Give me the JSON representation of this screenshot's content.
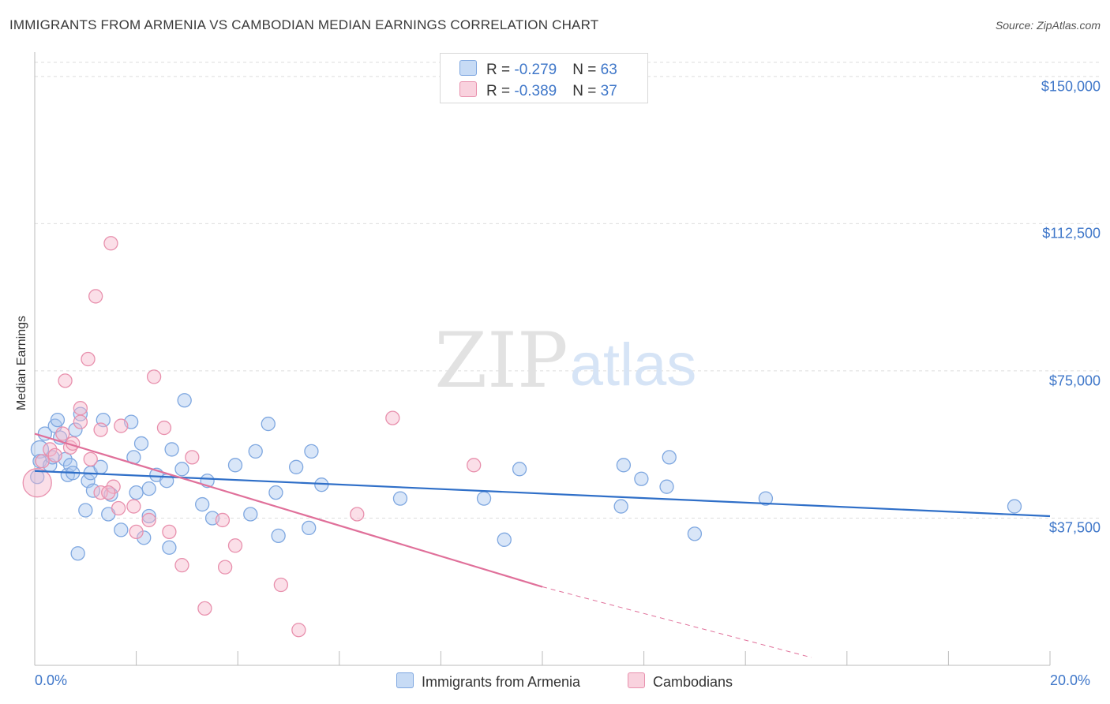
{
  "title": "IMMIGRANTS FROM ARMENIA VS CAMBODIAN MEDIAN EARNINGS CORRELATION CHART",
  "source": "Source: ZipAtlas.com",
  "watermark": {
    "zip": "ZIP",
    "atlas": "atlas"
  },
  "colors": {
    "blue_fill": "#aac8f0",
    "blue_stroke": "#7ea7e0",
    "blue_line": "#2f6fc8",
    "pink_fill": "#f6b8cb",
    "pink_stroke": "#e890ad",
    "pink_line": "#e0709a",
    "accent_text": "#3f77c9",
    "grid": "#dddddd"
  },
  "legend": {
    "rows": [
      {
        "r_label": "R = ",
        "r_value": "-0.279",
        "n_label": "N = ",
        "n_value": "63",
        "color": "blue"
      },
      {
        "r_label": "R = ",
        "r_value": "-0.389",
        "n_label": "N = ",
        "n_value": "37",
        "color": "pink"
      }
    ]
  },
  "chart_data": {
    "type": "scatter",
    "title": "IMMIGRANTS FROM ARMENIA VS CAMBODIAN MEDIAN EARNINGS CORRELATION CHART",
    "xlabel": "",
    "ylabel": "Median Earnings",
    "xlim": [
      0,
      20
    ],
    "ylim": [
      0,
      155000
    ],
    "x_tick_labels": [
      "0.0%",
      "20.0%"
    ],
    "y_ticks": [
      37500,
      75000,
      112500,
      150000
    ],
    "y_tick_labels": [
      "$37,500",
      "$75,000",
      "$112,500",
      "$150,000"
    ],
    "grid": "horizontal dashed",
    "legend_position": "bottom-center",
    "series": [
      {
        "name": "Immigrants from Armenia",
        "color": "blue",
        "trend": {
          "x": [
            0,
            20
          ],
          "y": [
            49500,
            38000
          ],
          "dashed_from": null
        },
        "points": [
          [
            0.1,
            55000
          ],
          [
            0.1,
            52000
          ],
          [
            0.2,
            59000
          ],
          [
            0.3,
            51000
          ],
          [
            0.35,
            53000
          ],
          [
            0.4,
            61000
          ],
          [
            0.45,
            62500
          ],
          [
            0.5,
            58000
          ],
          [
            0.6,
            52500
          ],
          [
            0.65,
            48500
          ],
          [
            0.7,
            51000
          ],
          [
            0.75,
            49000
          ],
          [
            0.8,
            60000
          ],
          [
            0.85,
            28500
          ],
          [
            0.9,
            64000
          ],
          [
            1.0,
            39500
          ],
          [
            1.05,
            47000
          ],
          [
            1.1,
            49000
          ],
          [
            1.15,
            44500
          ],
          [
            1.3,
            50500
          ],
          [
            1.35,
            62500
          ],
          [
            1.45,
            38500
          ],
          [
            1.5,
            43500
          ],
          [
            1.7,
            34500
          ],
          [
            1.9,
            62000
          ],
          [
            1.95,
            53000
          ],
          [
            2.0,
            44000
          ],
          [
            2.1,
            56500
          ],
          [
            2.15,
            32500
          ],
          [
            2.25,
            45000
          ],
          [
            2.4,
            48500
          ],
          [
            2.6,
            47000
          ],
          [
            2.65,
            30000
          ],
          [
            2.7,
            55000
          ],
          [
            2.9,
            50000
          ],
          [
            2.95,
            67500
          ],
          [
            3.3,
            41000
          ],
          [
            3.4,
            47000
          ],
          [
            3.5,
            37500
          ],
          [
            3.95,
            51000
          ],
          [
            4.25,
            38500
          ],
          [
            4.35,
            54500
          ],
          [
            4.6,
            61500
          ],
          [
            4.75,
            44000
          ],
          [
            4.8,
            33000
          ],
          [
            5.15,
            50500
          ],
          [
            5.4,
            35000
          ],
          [
            5.45,
            54500
          ],
          [
            5.65,
            46000
          ],
          [
            7.2,
            42500
          ],
          [
            8.85,
            42500
          ],
          [
            9.25,
            32000
          ],
          [
            9.55,
            50000
          ],
          [
            11.55,
            40500
          ],
          [
            11.6,
            51000
          ],
          [
            11.95,
            47500
          ],
          [
            12.45,
            45500
          ],
          [
            12.5,
            53000
          ],
          [
            13.0,
            33500
          ],
          [
            14.4,
            42500
          ],
          [
            19.3,
            40500
          ],
          [
            0.05,
            48000
          ],
          [
            2.25,
            38000
          ]
        ]
      },
      {
        "name": "Cambodians",
        "color": "pink",
        "trend": {
          "x": [
            0,
            10
          ],
          "y": [
            59000,
            20000
          ],
          "dashed_to": [
            15.3,
            2000
          ]
        },
        "points": [
          [
            0.05,
            46500
          ],
          [
            0.15,
            52000
          ],
          [
            0.3,
            55000
          ],
          [
            0.4,
            53500
          ],
          [
            0.55,
            59000
          ],
          [
            0.6,
            72500
          ],
          [
            0.7,
            55500
          ],
          [
            0.75,
            56500
          ],
          [
            0.9,
            65500
          ],
          [
            0.9,
            62000
          ],
          [
            1.05,
            78000
          ],
          [
            1.1,
            52500
          ],
          [
            1.2,
            94000
          ],
          [
            1.3,
            60000
          ],
          [
            1.3,
            44000
          ],
          [
            1.5,
            107500
          ],
          [
            1.55,
            45500
          ],
          [
            1.65,
            40000
          ],
          [
            1.7,
            61000
          ],
          [
            1.95,
            40500
          ],
          [
            2.0,
            34000
          ],
          [
            2.25,
            37000
          ],
          [
            2.35,
            73500
          ],
          [
            2.55,
            60500
          ],
          [
            2.65,
            34000
          ],
          [
            2.9,
            25500
          ],
          [
            3.1,
            53000
          ],
          [
            3.35,
            14500
          ],
          [
            3.7,
            37000
          ],
          [
            3.75,
            25000
          ],
          [
            3.95,
            30500
          ],
          [
            4.85,
            20500
          ],
          [
            5.2,
            9000
          ],
          [
            6.35,
            38500
          ],
          [
            7.05,
            63000
          ],
          [
            8.65,
            51000
          ],
          [
            1.45,
            44000
          ]
        ]
      }
    ]
  },
  "bottom_legend": {
    "items": [
      "Immigrants from Armenia",
      "Cambodians"
    ]
  }
}
